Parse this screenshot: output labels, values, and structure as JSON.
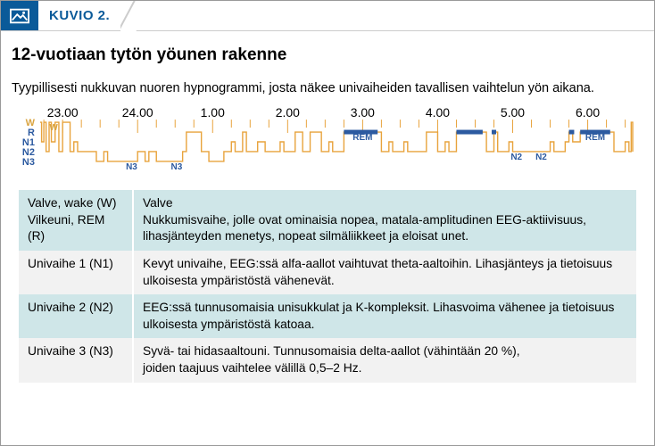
{
  "header": {
    "figure_label": "KUVIO 2."
  },
  "title": "12-vuotiaan tytön yöunen rakenne",
  "subtitle": "Tyypillisesti nukkuvan nuoren hypnogrammi, josta näkee univaiheiden tavallisen vaihtelun yön aikana.",
  "hypnogram": {
    "time_labels": [
      "23.00",
      "24.00",
      "1.00",
      "2.00",
      "3.00",
      "4.00",
      "5.00",
      "6.00"
    ],
    "stage_labels": [
      "W",
      "R",
      "N1",
      "N2",
      "N3"
    ],
    "stage_label_colors": {
      "W": "#d9a441",
      "R": "#2c5aa0",
      "N1": "#2c5aa0",
      "N2": "#2c5aa0",
      "N3": "#2c5aa0"
    },
    "line_color": "#e8a33c",
    "rem_bar_color": "#2c5aa0",
    "time_start_hr": 22.7,
    "time_end_hr": 30.6,
    "stages_sequence": [
      {
        "t": 22.7,
        "s": 0
      },
      {
        "t": 22.72,
        "s": 2
      },
      {
        "t": 22.75,
        "s": 0
      },
      {
        "t": 22.78,
        "s": 3
      },
      {
        "t": 22.82,
        "s": 0
      },
      {
        "t": 22.85,
        "s": 2
      },
      {
        "t": 22.9,
        "s": 0
      },
      {
        "t": 22.95,
        "s": 3
      },
      {
        "t": 23.0,
        "s": 0
      },
      {
        "t": 23.05,
        "s": 0
      },
      {
        "t": 23.1,
        "s": 3
      },
      {
        "t": 23.15,
        "s": 2
      },
      {
        "t": 23.2,
        "s": 3
      },
      {
        "t": 23.3,
        "s": 3
      },
      {
        "t": 23.35,
        "s": 3
      },
      {
        "t": 23.45,
        "s": 4
      },
      {
        "t": 23.55,
        "s": 3
      },
      {
        "t": 23.6,
        "s": 4
      },
      {
        "t": 23.95,
        "s": 4
      },
      {
        "t": 24.0,
        "s": 3
      },
      {
        "t": 24.05,
        "s": 3
      },
      {
        "t": 24.1,
        "s": 4
      },
      {
        "t": 24.15,
        "s": 3
      },
      {
        "t": 24.2,
        "s": 3
      },
      {
        "t": 24.25,
        "s": 4
      },
      {
        "t": 24.55,
        "s": 4
      },
      {
        "t": 24.6,
        "s": 3
      },
      {
        "t": 24.65,
        "s": 1
      },
      {
        "t": 24.8,
        "s": 1
      },
      {
        "t": 24.85,
        "s": 3
      },
      {
        "t": 24.95,
        "s": 4
      },
      {
        "t": 25.1,
        "s": 4
      },
      {
        "t": 25.15,
        "s": 3
      },
      {
        "t": 25.2,
        "s": 3
      },
      {
        "t": 25.25,
        "s": 2
      },
      {
        "t": 25.3,
        "s": 3
      },
      {
        "t": 25.4,
        "s": 1
      },
      {
        "t": 25.45,
        "s": 3
      },
      {
        "t": 25.55,
        "s": 3
      },
      {
        "t": 25.6,
        "s": 2
      },
      {
        "t": 25.7,
        "s": 3
      },
      {
        "t": 25.85,
        "s": 3
      },
      {
        "t": 25.9,
        "s": 2
      },
      {
        "t": 25.95,
        "s": 3
      },
      {
        "t": 26.05,
        "s": 3
      },
      {
        "t": 26.1,
        "s": 1
      },
      {
        "t": 26.2,
        "s": 3
      },
      {
        "t": 26.3,
        "s": 1
      },
      {
        "t": 26.45,
        "s": 3
      },
      {
        "t": 26.55,
        "s": 2
      },
      {
        "t": 26.6,
        "s": 3
      },
      {
        "t": 26.75,
        "s": 1
      },
      {
        "t": 27.2,
        "s": 1
      },
      {
        "t": 27.25,
        "s": 3
      },
      {
        "t": 27.35,
        "s": 2
      },
      {
        "t": 27.4,
        "s": 3
      },
      {
        "t": 27.5,
        "s": 3
      },
      {
        "t": 27.55,
        "s": 2
      },
      {
        "t": 27.6,
        "s": 3
      },
      {
        "t": 27.8,
        "s": 3
      },
      {
        "t": 27.85,
        "s": 1
      },
      {
        "t": 28.0,
        "s": 3
      },
      {
        "t": 28.1,
        "s": 2
      },
      {
        "t": 28.15,
        "s": 3
      },
      {
        "t": 28.25,
        "s": 1
      },
      {
        "t": 28.6,
        "s": 1
      },
      {
        "t": 28.65,
        "s": 3
      },
      {
        "t": 28.75,
        "s": 1
      },
      {
        "t": 28.8,
        "s": 3
      },
      {
        "t": 28.9,
        "s": 3
      },
      {
        "t": 28.95,
        "s": 2
      },
      {
        "t": 29.0,
        "s": 3
      },
      {
        "t": 29.1,
        "s": 3
      },
      {
        "t": 29.2,
        "s": 3
      },
      {
        "t": 29.3,
        "s": 3
      },
      {
        "t": 29.45,
        "s": 3
      },
      {
        "t": 29.5,
        "s": 2
      },
      {
        "t": 29.55,
        "s": 3
      },
      {
        "t": 29.65,
        "s": 3
      },
      {
        "t": 29.7,
        "s": 2
      },
      {
        "t": 29.75,
        "s": 1
      },
      {
        "t": 29.8,
        "s": 2
      },
      {
        "t": 29.9,
        "s": 1
      },
      {
        "t": 30.3,
        "s": 1
      },
      {
        "t": 30.35,
        "s": 3
      },
      {
        "t": 30.45,
        "s": 3
      },
      {
        "t": 30.5,
        "s": 2
      },
      {
        "t": 30.55,
        "s": 3
      },
      {
        "t": 30.58,
        "s": 0
      },
      {
        "t": 30.6,
        "s": 3
      }
    ],
    "rem_bars": [
      {
        "t0": 26.75,
        "t1": 27.2
      },
      {
        "t0": 28.25,
        "t1": 28.6
      },
      {
        "t0": 28.72,
        "t1": 28.78
      },
      {
        "t0": 29.75,
        "t1": 29.82
      },
      {
        "t0": 29.9,
        "t1": 30.3
      }
    ],
    "inline_stage_annotations": [
      {
        "text": "W",
        "t": 22.88,
        "s": 0,
        "color": "#d9a441"
      },
      {
        "text": "N3",
        "t": 23.92,
        "s": 4,
        "color": "#2c5aa0"
      },
      {
        "text": "N3",
        "t": 24.52,
        "s": 4,
        "color": "#2c5aa0"
      },
      {
        "text": "REM",
        "t": 27.0,
        "s": 1,
        "color": "#2c5aa0"
      },
      {
        "text": "N2",
        "t": 29.05,
        "s": 3,
        "color": "#2c5aa0"
      },
      {
        "text": "N2",
        "t": 29.38,
        "s": 3,
        "color": "#2c5aa0"
      },
      {
        "text": "REM",
        "t": 30.1,
        "s": 1,
        "color": "#2c5aa0"
      }
    ],
    "tick_color": "#e8a33c",
    "tick_interval_hr": 0.25,
    "major_tick_hrs": [
      23,
      24,
      25,
      26,
      27,
      28,
      29,
      30
    ],
    "time_label_fontsize": 14,
    "stage_label_fontsize": 11,
    "annotation_fontsize": 10
  },
  "table": {
    "row_alt_colors": [
      "#cfe6e8",
      "#f2f2f2"
    ],
    "rows": [
      {
        "left": "Valve, wake (W)\nVilkeuni, REM (R)",
        "right": "Valve\nNukkumisvaihe, jolle ovat ominaisia nopea, matala-amplitudinen EEG-aktiivisuus, lihasjänteyden menetys, nopeat silmäliikkeet ja eloisat unet."
      },
      {
        "left": "Univaihe 1 (N1)",
        "right": "Kevyt univaihe, EEG:ssä alfa-aallot vaihtuvat theta-aaltoihin. Lihasjänteys ja tietoisuus ulkoisesta ympäristöstä vähenevät."
      },
      {
        "left": "Univaihe 2 (N2)",
        "right": "EEG:ssä tunnusomaisia unisukkulat ja K-kompleksit. Lihasvoima vähenee ja tietoisuus ulkoisesta ympäristöstä katoaa."
      },
      {
        "left": "Univaihe 3 (N3)",
        "right": "Syvä- tai hidasaaltouni. Tunnusomaisia delta-aallot (vähintään 20 %),\njoiden taajuus vaihtelee välillä 0,5–2 Hz."
      }
    ]
  }
}
